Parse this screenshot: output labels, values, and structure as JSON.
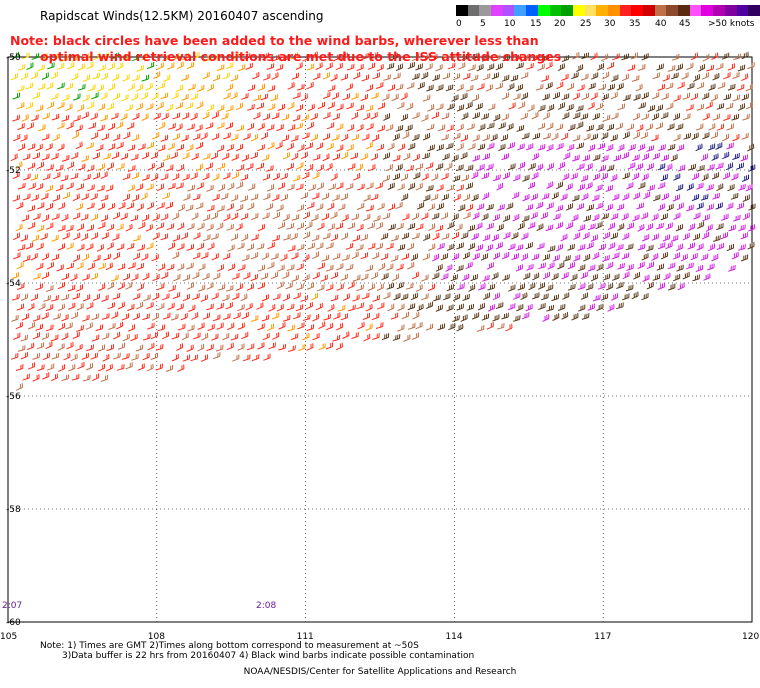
{
  "header": {
    "title": "Rapidscat Winds(12.5KM) 20160407 ascending"
  },
  "legend": {
    "colors": [
      "#000000",
      "#6e6e6e",
      "#9a9a9a",
      "#e040ff",
      "#b050ff",
      "#40a0ff",
      "#0060ff",
      "#00ff00",
      "#00c000",
      "#00a000",
      "#ffff00",
      "#ffe060",
      "#ffb000",
      "#ff9000",
      "#ff2020",
      "#ff0000",
      "#d00000",
      "#c07048",
      "#8b4a2c",
      "#5a2a10",
      "#ff50ff",
      "#e000e0",
      "#b000b0",
      "#8000a0",
      "#5000a0",
      "#300060"
    ],
    "labels": [
      "0",
      "5",
      "10",
      "15",
      "20",
      "25",
      "30",
      "35",
      "40",
      "45",
      ">50 knots"
    ]
  },
  "note": {
    "line1": "Note: black circles have been added to the wind barbs, wherever less than",
    "line2": "optimal wind retrieval conditions are met due to the ISS attitude changes"
  },
  "map": {
    "lon_labels": [
      "105",
      "108",
      "111",
      "114",
      "117",
      "120"
    ],
    "lat_labels": [
      "-50",
      "-52",
      "-54",
      "-56",
      "-58",
      "-60"
    ],
    "time_labels": [
      "2:07",
      "2:08"
    ],
    "speed_colors": {
      "calm": "#00a000",
      "light": "#ffd400",
      "moderate": "#ff9c00",
      "fresh": "#ff2a1a",
      "strong": "#c07048",
      "gale": "#5a3a1a",
      "storm": "#d020e0",
      "severe": "#202080"
    }
  },
  "footer": {
    "line1": "Note: 1) Times are GMT 2)Times along bottom correspond to measurement at ~50S",
    "line2": "3)Data buffer is 22 hrs from 20160407 4) Black wind barbs indicate possible contamination",
    "line3": "NOAA/NESDIS/Center for Satellite Applications and Research"
  }
}
